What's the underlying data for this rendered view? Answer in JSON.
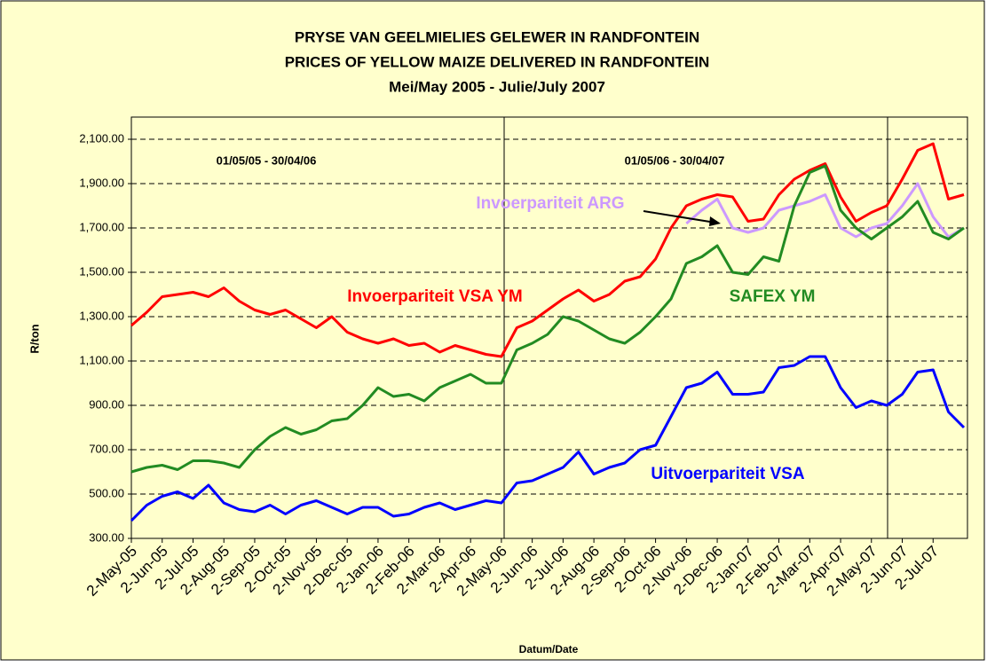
{
  "chart_data": {
    "type": "line",
    "title": [
      "PRYSE VAN GEELMIELIES GELEWER IN RANDFONTEIN",
      "PRICES OF YELLOW MAIZE DELIVERED IN RANDFONTEIN",
      "Mei/May 2005 - Julie/July 2007"
    ],
    "ylabel": "R/ton",
    "xlabel": "Datum/Date",
    "period_labels": [
      "01/05/05 - 30/04/06",
      "01/05/06 - 30/04/07"
    ],
    "categories": [
      "2-May-05",
      null,
      "2-Jun-05",
      null,
      "2-Jul-05",
      null,
      "2-Aug-05",
      null,
      "2-Sep-05",
      null,
      "2-Oct-05",
      null,
      "2-Nov-05",
      null,
      "2-Dec-05",
      null,
      "2-Jan-06",
      null,
      "2-Feb-06",
      null,
      "2-Mar-06",
      null,
      "2-Apr-06",
      null,
      "2-May-06",
      null,
      "2-Jun-06",
      null,
      "2-Jul-06",
      null,
      "2-Aug-06",
      null,
      "2-Sep-06",
      null,
      "2-Oct-06",
      null,
      "2-Nov-06",
      null,
      "2-Dec-06",
      null,
      "2-Jan-07",
      null,
      "2-Feb-07",
      null,
      "2-Mar-07",
      null,
      "2-Apr-07",
      null,
      "2-May-07",
      null,
      "2-Jun-07",
      null,
      "2-Jul-07",
      null,
      null
    ],
    "ylim": [
      300,
      2200
    ],
    "yticks": [
      {
        "value": 300,
        "label": "300.00"
      },
      {
        "value": 500,
        "label": "500.00"
      },
      {
        "value": 700,
        "label": "700.00"
      },
      {
        "value": 900,
        "label": "900.00"
      },
      {
        "value": 1100,
        "label": "1,100.00"
      },
      {
        "value": 1300,
        "label": "1,300.00"
      },
      {
        "value": 1500,
        "label": "1,500.00"
      },
      {
        "value": 1700,
        "label": "1,700.00"
      },
      {
        "value": 1900,
        "label": "1,900.00"
      },
      {
        "value": 2100,
        "label": "2,100.00"
      }
    ],
    "grid": true,
    "series": [
      {
        "name": "Invoerpariteit  VSA YM",
        "color": "#ff0000",
        "values": [
          1260,
          1320,
          1390,
          1400,
          1410,
          1390,
          1430,
          1370,
          1330,
          1310,
          1330,
          1290,
          1250,
          1300,
          1230,
          1200,
          1180,
          1200,
          1170,
          1180,
          1140,
          1170,
          1150,
          1130,
          1120,
          1250,
          1280,
          1330,
          1380,
          1420,
          1370,
          1400,
          1460,
          1480,
          1560,
          1700,
          1800,
          1830,
          1850,
          1840,
          1730,
          1740,
          1850,
          1920,
          1960,
          1990,
          1840,
          1730,
          1770,
          1800,
          1920,
          2050,
          2080,
          1830,
          1850
        ]
      },
      {
        "name": "Invoerpariteit  ARG",
        "color": "#cc99ff",
        "values": [
          null,
          null,
          null,
          null,
          null,
          null,
          null,
          null,
          null,
          null,
          null,
          null,
          null,
          null,
          null,
          null,
          null,
          null,
          null,
          null,
          null,
          null,
          null,
          null,
          null,
          null,
          null,
          null,
          null,
          null,
          null,
          null,
          null,
          null,
          null,
          null,
          1720,
          1780,
          1830,
          1700,
          1680,
          1700,
          1780,
          1800,
          1820,
          1850,
          1700,
          1660,
          1700,
          1720,
          1800,
          1900,
          1750,
          1660,
          1700
        ]
      },
      {
        "name": "SAFEX YM",
        "color": "#228b22",
        "values": [
          600,
          620,
          630,
          610,
          650,
          650,
          640,
          620,
          700,
          760,
          800,
          770,
          790,
          830,
          840,
          900,
          980,
          940,
          950,
          920,
          980,
          1010,
          1040,
          1000,
          1000,
          1150,
          1180,
          1220,
          1300,
          1280,
          1240,
          1200,
          1180,
          1230,
          1300,
          1380,
          1540,
          1570,
          1620,
          1500,
          1490,
          1570,
          1550,
          1800,
          1950,
          1980,
          1780,
          1700,
          1650,
          1700,
          1750,
          1820,
          1680,
          1650,
          1700
        ]
      },
      {
        "name": "Uitvoerpariteit VSA",
        "color": "#0000ff",
        "values": [
          380,
          450,
          490,
          510,
          480,
          540,
          460,
          430,
          420,
          450,
          410,
          450,
          470,
          440,
          410,
          440,
          440,
          400,
          410,
          440,
          460,
          430,
          450,
          470,
          460,
          550,
          560,
          590,
          620,
          690,
          590,
          620,
          640,
          700,
          720,
          850,
          980,
          1000,
          1050,
          950,
          950,
          960,
          1070,
          1080,
          1120,
          1120,
          980,
          890,
          920,
          900,
          950,
          1050,
          1060,
          870,
          800
        ]
      }
    ]
  }
}
